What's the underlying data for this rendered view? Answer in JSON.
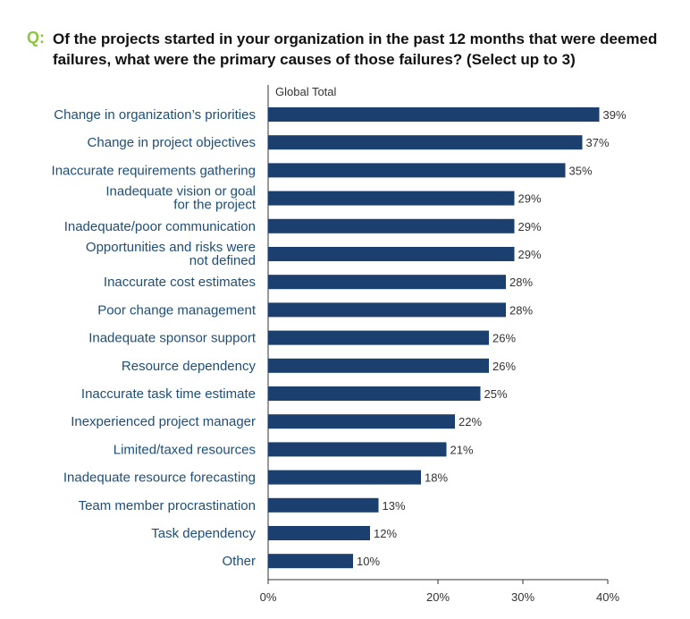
{
  "question": {
    "prefix": "Q:",
    "text": "Of the projects started in your organization in the past 12 months that were deemed failures, what were the primary causes of those failures? (Select up to 3)"
  },
  "colors": {
    "bar": "#1b3f6e",
    "label": "#1f4e79",
    "accent": "#8cc63f"
  },
  "chart_data": {
    "type": "bar",
    "orientation": "horizontal",
    "series": [
      {
        "name": "Global Total",
        "values": [
          39,
          37,
          35,
          29,
          29,
          29,
          28,
          28,
          26,
          26,
          25,
          22,
          21,
          18,
          13,
          12,
          10
        ]
      }
    ],
    "categories": [
      "Change in organization’s priorities",
      "Change in project objectives",
      "Inaccurate requirements gathering",
      "Inadequate vision or goal for the project",
      "Inadequate/poor communication",
      "Opportunities and risks were not defined",
      "Inaccurate cost estimates",
      "Poor change management",
      "Inadequate sponsor support",
      "Resource dependency",
      "Inaccurate task time estimate",
      "Inexperienced project manager",
      "Limited/taxed resources",
      "Inadequate resource forecasting",
      "Team member procrastination",
      "Task dependency",
      "Other"
    ],
    "category_lines": [
      [
        "Change in organization’s priorities"
      ],
      [
        "Change in project objectives"
      ],
      [
        "Inaccurate requirements gathering"
      ],
      [
        "Inadequate vision or goal",
        "for the project"
      ],
      [
        "Inadequate/poor communication"
      ],
      [
        "Opportunities and risks were",
        "not defined"
      ],
      [
        "Inaccurate cost estimates"
      ],
      [
        "Poor change management"
      ],
      [
        "Inadequate sponsor support"
      ],
      [
        "Resource dependency"
      ],
      [
        "Inaccurate task time estimate"
      ],
      [
        "Inexperienced project manager"
      ],
      [
        "Limited/taxed resources"
      ],
      [
        "Inadequate resource forecasting"
      ],
      [
        "Team member procrastination"
      ],
      [
        "Task dependency"
      ],
      [
        "Other"
      ]
    ],
    "value_labels": [
      "39%",
      "37%",
      "35%",
      "29%",
      "29%",
      "29%",
      "28%",
      "28%",
      "26%",
      "26%",
      "25%",
      "22%",
      "21%",
      "18%",
      "13%",
      "12%",
      "10%"
    ],
    "xlim": [
      0,
      40
    ],
    "xticks": [
      0,
      20,
      30,
      40
    ],
    "xtick_labels": [
      "0%",
      "20%",
      "30%",
      "40%"
    ],
    "grid": false
  }
}
